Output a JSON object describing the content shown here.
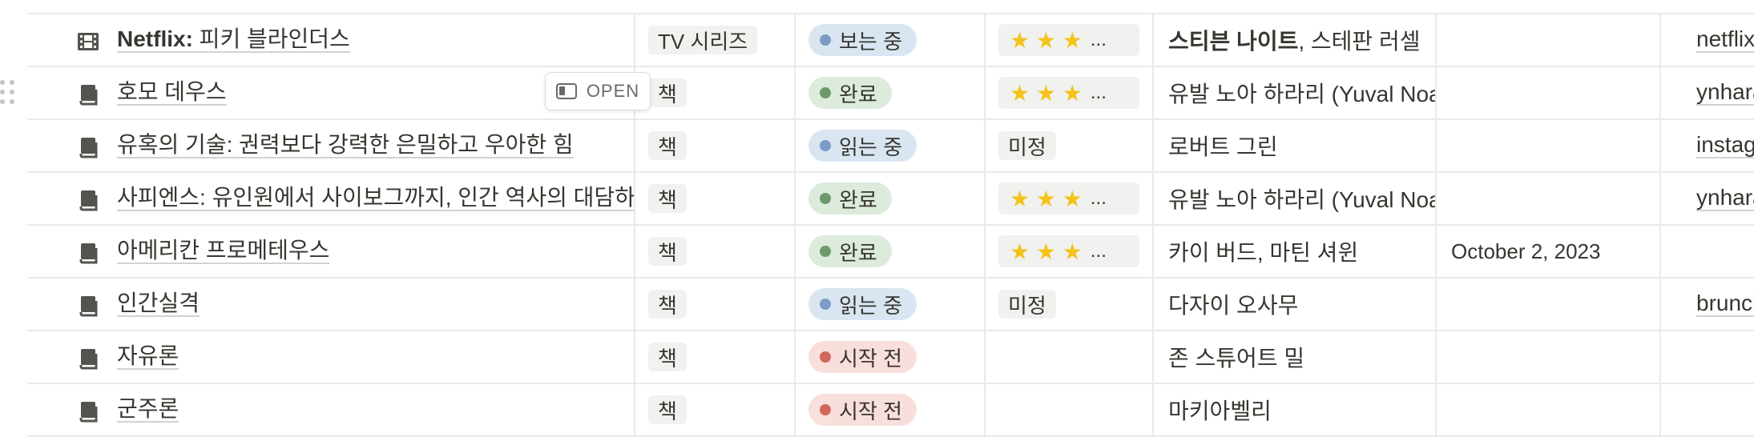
{
  "colors": {
    "gray_tag_bg": "#f1f1ef",
    "blue_status_bg": "#d9e6f2",
    "blue_dot": "#7a9cc6",
    "green_status_bg": "#dcebdc",
    "green_dot": "#6d9a6d",
    "red_status_bg": "#f8dfdb",
    "red_dot": "#d0685a",
    "star": "#f3c319"
  },
  "open_button": {
    "label": "OPEN"
  },
  "rows": [
    {
      "icon": "tv-film-icon",
      "title_bold": "Netflix:",
      "title_rest": " 피키 블라인더스",
      "type": "TV 시리즈",
      "status": {
        "label": "보는 중",
        "tone": "blue"
      },
      "rating": {
        "stars": "★ ★ ★",
        "ellipsis": "...",
        "show": true
      },
      "author_bold": "스티븐 나이트",
      "author_rest": ", 스테판 러셀",
      "date": "",
      "link": "netflix.com"
    },
    {
      "icon": "book-icon",
      "title_bold": "",
      "title_rest": "호모 데우스",
      "type": "책",
      "status": {
        "label": "완료",
        "tone": "green"
      },
      "rating": {
        "stars": "★ ★ ★",
        "ellipsis": "...",
        "show": true
      },
      "author_bold": "",
      "author_rest": "유발 노아 하라리 (Yuval Noah Harari)",
      "date": "",
      "link": "ynharari.com"
    },
    {
      "icon": "book-icon",
      "title_bold": "",
      "title_rest": "유혹의 기술: 권력보다 강력한 은밀하고 우아한 힘",
      "type": "책",
      "status": {
        "label": "읽는 중",
        "tone": "blue"
      },
      "rating": {
        "tag": "미정",
        "show": false
      },
      "author_bold": "",
      "author_rest": "로버트 그린",
      "date": "",
      "link": "instagram.com"
    },
    {
      "icon": "book-icon",
      "title_bold": "",
      "title_rest": "사피엔스: 유인원에서 사이보그까지, 인간 역사의 대담하고 위대한 질문",
      "type": "책",
      "status": {
        "label": "완료",
        "tone": "green"
      },
      "rating": {
        "stars": "★ ★ ★",
        "ellipsis": "...",
        "show": true
      },
      "author_bold": "",
      "author_rest": "유발 노아 하라리 (Yuval Noah Harari)",
      "date": "",
      "link": "ynharari.com"
    },
    {
      "icon": "book-icon",
      "title_bold": "",
      "title_rest": "아메리칸 프로메테우스",
      "type": "책",
      "status": {
        "label": "완료",
        "tone": "green"
      },
      "rating": {
        "stars": "★ ★ ★",
        "ellipsis": "...",
        "show": true
      },
      "author_bold": "",
      "author_rest": "카이 버드, 마틴 셔윈",
      "date": "October 2, 2023",
      "link": ""
    },
    {
      "icon": "book-icon",
      "title_bold": "",
      "title_rest": "인간실격",
      "type": "책",
      "status": {
        "label": "읽는 중",
        "tone": "blue"
      },
      "rating": {
        "tag": "미정",
        "show": false
      },
      "author_bold": "",
      "author_rest": "다자이 오사무",
      "date": "",
      "link": "brunch.co.kr"
    },
    {
      "icon": "book-icon",
      "title_bold": "",
      "title_rest": "자유론",
      "type": "책",
      "status": {
        "label": "시작 전",
        "tone": "red"
      },
      "rating": {
        "show": false
      },
      "author_bold": "",
      "author_rest": "존 스튜어트 밀",
      "date": "",
      "link": ""
    },
    {
      "icon": "book-icon",
      "title_bold": "",
      "title_rest": "군주론",
      "type": "책",
      "status": {
        "label": "시작 전",
        "tone": "red"
      },
      "rating": {
        "show": false
      },
      "author_bold": "",
      "author_rest": "마키아벨리",
      "date": "",
      "link": ""
    }
  ]
}
